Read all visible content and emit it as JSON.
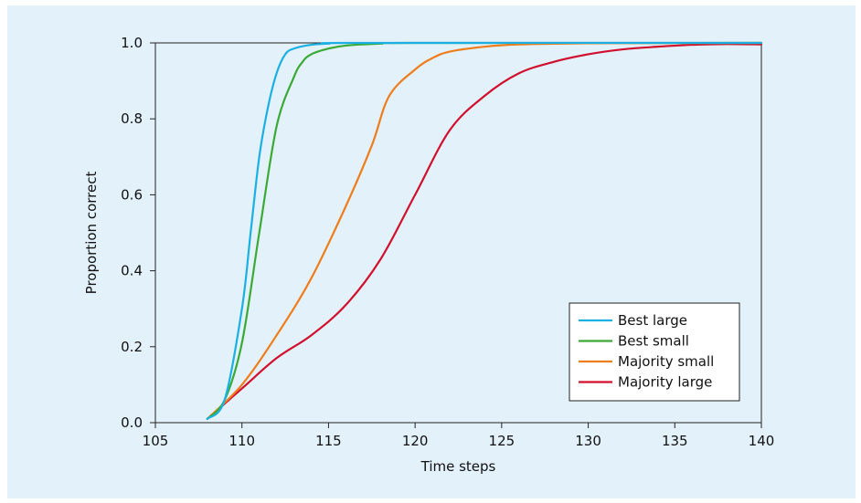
{
  "chart_data": {
    "type": "line",
    "title": "",
    "xlabel": "Time steps",
    "ylabel": "Proportion correct",
    "xlim": [
      105,
      140
    ],
    "ylim": [
      0,
      1.0
    ],
    "x_ticks": [
      "105",
      "110",
      "115",
      "120",
      "125",
      "130",
      "135",
      "140"
    ],
    "x_tick_values": [
      105,
      110,
      115,
      120,
      125,
      130,
      135,
      140
    ],
    "y_ticks": [
      "0.0",
      "0.2",
      "0.4",
      "0.6",
      "0.8",
      "1.0"
    ],
    "y_tick_values": [
      0,
      0.2,
      0.4,
      0.6,
      0.8,
      1.0
    ],
    "grid": false,
    "legend_position": "lower-right",
    "series": [
      {
        "name": "Best large",
        "color": "#1bb0e3",
        "points": [
          [
            108,
            0.01
          ],
          [
            109,
            0.06
          ],
          [
            110,
            0.3
          ],
          [
            110.5,
            0.5
          ],
          [
            111,
            0.7
          ],
          [
            111.5,
            0.83
          ],
          [
            112,
            0.92
          ],
          [
            112.5,
            0.97
          ],
          [
            113,
            0.985
          ],
          [
            114,
            0.995
          ],
          [
            115,
            0.998
          ],
          [
            117,
            1.0
          ],
          [
            140,
            1.0
          ]
        ]
      },
      {
        "name": "Best small",
        "color": "#3aaa35",
        "points": [
          [
            108,
            0.01
          ],
          [
            109,
            0.06
          ],
          [
            110,
            0.21
          ],
          [
            111,
            0.5
          ],
          [
            112,
            0.78
          ],
          [
            113,
            0.91
          ],
          [
            113.5,
            0.95
          ],
          [
            114,
            0.97
          ],
          [
            115,
            0.985
          ],
          [
            116,
            0.993
          ],
          [
            118,
            0.998
          ],
          [
            120,
            1.0
          ],
          [
            140,
            1.0
          ]
        ]
      },
      {
        "name": "Majority small",
        "color": "#ee7d1c",
        "points": [
          [
            108,
            0.01
          ],
          [
            110,
            0.1
          ],
          [
            112,
            0.23
          ],
          [
            114,
            0.38
          ],
          [
            116,
            0.57
          ],
          [
            117.5,
            0.73
          ],
          [
            118.5,
            0.86
          ],
          [
            120,
            0.93
          ],
          [
            121,
            0.96
          ],
          [
            122,
            0.977
          ],
          [
            124,
            0.99
          ],
          [
            126,
            0.996
          ],
          [
            130,
            0.999
          ],
          [
            140,
            1.0
          ]
        ]
      },
      {
        "name": "Majority large",
        "color": "#d0102c",
        "points": [
          [
            108,
            0.01
          ],
          [
            110,
            0.09
          ],
          [
            112,
            0.17
          ],
          [
            114,
            0.23
          ],
          [
            116,
            0.31
          ],
          [
            118,
            0.43
          ],
          [
            120,
            0.6
          ],
          [
            122,
            0.77
          ],
          [
            124,
            0.86
          ],
          [
            126,
            0.92
          ],
          [
            128,
            0.95
          ],
          [
            130,
            0.97
          ],
          [
            132,
            0.983
          ],
          [
            134,
            0.99
          ],
          [
            136,
            0.995
          ],
          [
            138,
            0.997
          ],
          [
            140,
            0.996
          ]
        ]
      }
    ]
  }
}
